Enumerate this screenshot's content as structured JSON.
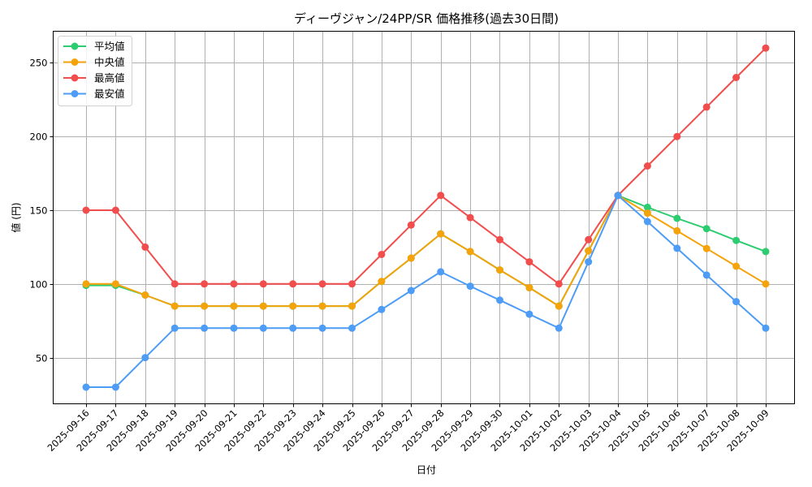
{
  "chart_data": {
    "type": "line",
    "title": "ディーヴジャン/24PP/SR 価格推移(過去30日間)",
    "xlabel": "日付",
    "ylabel": "値 (円)",
    "ylim": [
      18.7,
      271.4
    ],
    "yticks": [
      50,
      100,
      150,
      200,
      250
    ],
    "grid": true,
    "legend_position": "upper left",
    "categories": [
      "2025-09-16",
      "2025-09-17",
      "2025-09-18",
      "2025-09-19",
      "2025-09-20",
      "2025-09-21",
      "2025-09-22",
      "2025-09-23",
      "2025-09-24",
      "2025-09-25",
      "2025-09-26",
      "2025-09-27",
      "2025-09-28",
      "2025-09-29",
      "2025-09-30",
      "2025-10-01",
      "2025-10-02",
      "2025-10-03",
      "2025-10-04",
      "2025-10-05",
      "2025-10-06",
      "2025-10-07",
      "2025-10-08",
      "2025-10-09"
    ],
    "series": [
      {
        "name": "平均値",
        "color": "#2ecc71",
        "values": [
          99,
          99,
          92.5,
          85,
          85,
          85,
          85,
          85,
          85,
          85,
          101.7,
          117.5,
          134,
          122,
          109.5,
          97.5,
          85,
          122.5,
          160,
          152,
          144.5,
          137.5,
          129.5,
          122
        ]
      },
      {
        "name": "中央値",
        "color": "#f5a30a",
        "values": [
          100,
          100,
          92.5,
          85,
          85,
          85,
          85,
          85,
          85,
          85,
          101.7,
          117.5,
          134,
          122,
          109.5,
          97.5,
          85,
          122.5,
          160,
          148,
          136,
          124,
          112,
          100
        ]
      },
      {
        "name": "最高値",
        "color": "#f24d4d",
        "values": [
          150,
          150,
          125,
          100,
          100,
          100,
          100,
          100,
          100,
          100,
          120,
          140,
          160,
          145,
          130,
          115,
          100,
          130,
          160,
          180,
          200,
          220,
          240,
          260
        ]
      },
      {
        "name": "最安値",
        "color": "#4d9cf5",
        "values": [
          30,
          30,
          50,
          70,
          70,
          70,
          70,
          70,
          70,
          70,
          82.7,
          95.5,
          108.2,
          98.5,
          89,
          79.5,
          70,
          115,
          160,
          142.3,
          124.2,
          106,
          88,
          70
        ]
      }
    ]
  },
  "style": {
    "grid_color": "#b0b0b0",
    "axis_color": "#000000"
  }
}
